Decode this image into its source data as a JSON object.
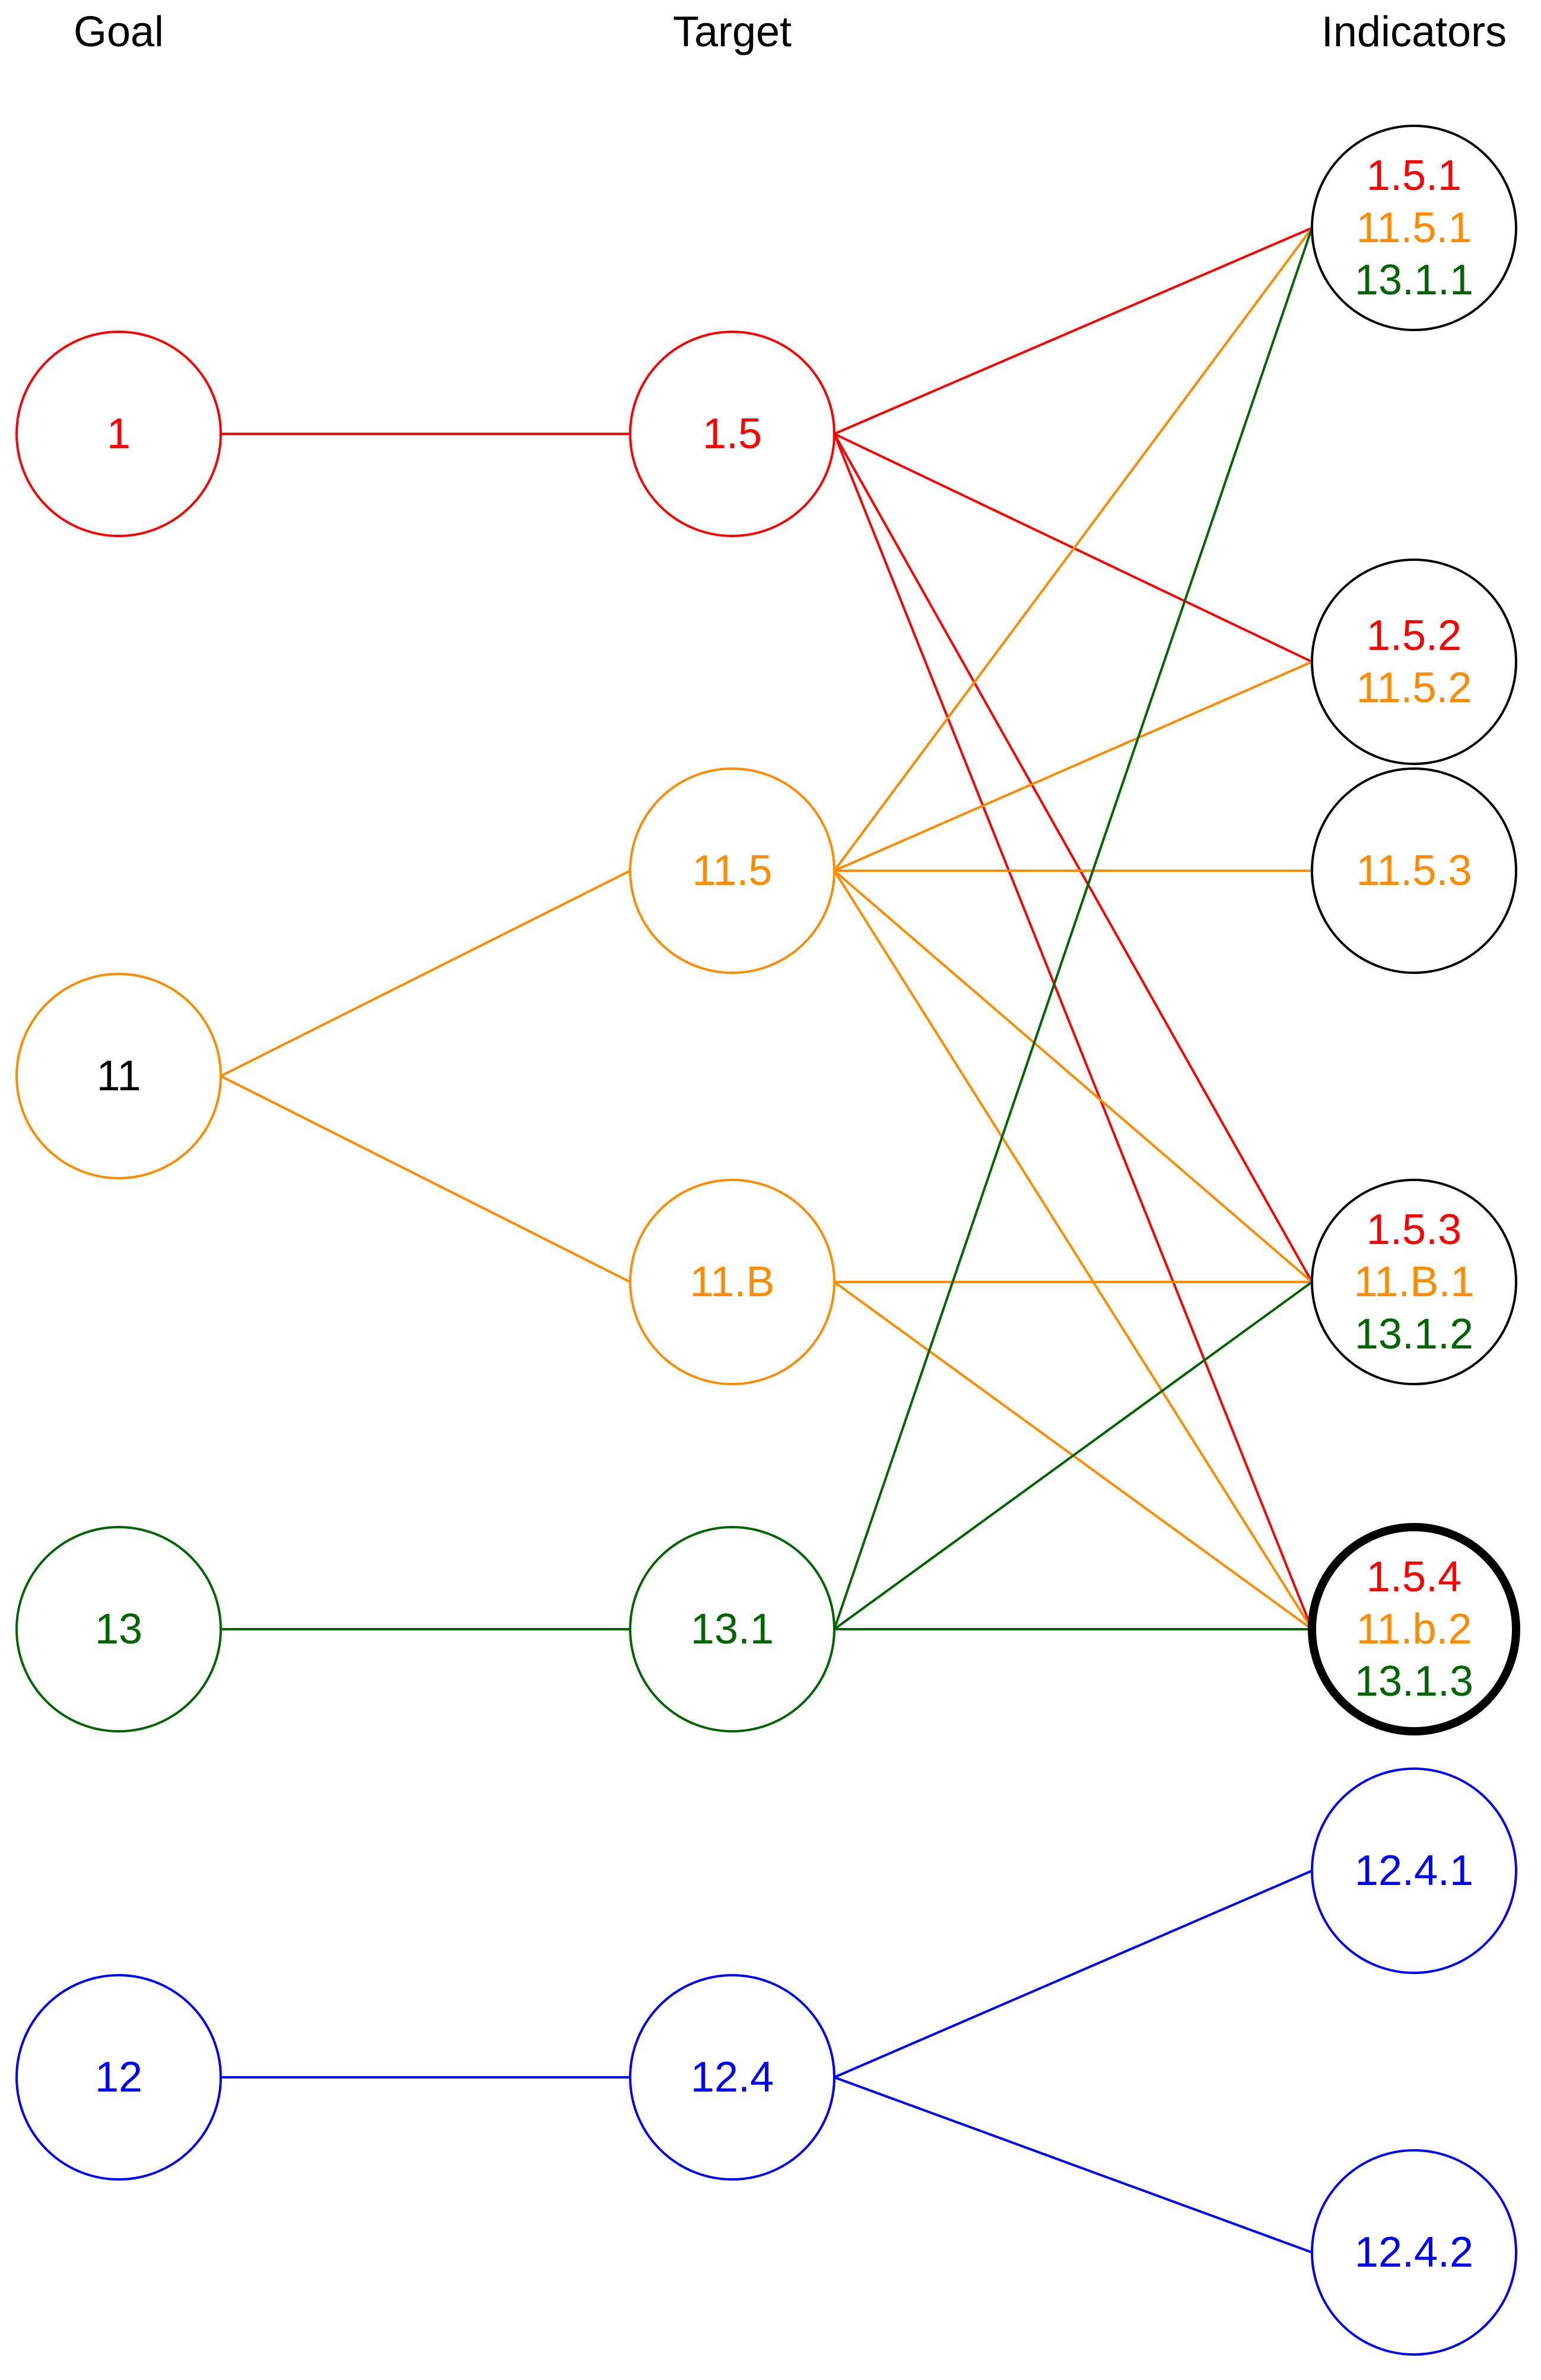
{
  "headers": {
    "goal": "Goal",
    "target": "Target",
    "indicators": "Indicators"
  },
  "colors": {
    "red": "#ff0000",
    "orange": "#ff8c00",
    "green": "#006400",
    "blue": "#0000ff",
    "black": "#000000"
  },
  "goals": [
    {
      "id": "g1",
      "label": "1",
      "color": "red",
      "text_color": "red"
    },
    {
      "id": "g11",
      "label": "11",
      "color": "orange",
      "text_color": "black"
    },
    {
      "id": "g13",
      "label": "13",
      "color": "green",
      "text_color": "green"
    },
    {
      "id": "g12",
      "label": "12",
      "color": "blue",
      "text_color": "blue"
    }
  ],
  "targets": [
    {
      "id": "t1_5",
      "label": "1.5",
      "color": "red"
    },
    {
      "id": "t11_5",
      "label": "11.5",
      "color": "orange"
    },
    {
      "id": "t11_B",
      "label": "11.B",
      "color": "orange"
    },
    {
      "id": "t13_1",
      "label": "13.1",
      "color": "green"
    },
    {
      "id": "t12_4",
      "label": "12.4",
      "color": "blue"
    }
  ],
  "indicators": [
    {
      "id": "i1",
      "border": "black",
      "lines": [
        {
          "text": "1.5.1",
          "color": "red"
        },
        {
          "text": "11.5.1",
          "color": "orange"
        },
        {
          "text": "13.1.1",
          "color": "green"
        }
      ]
    },
    {
      "id": "i2",
      "border": "black",
      "lines": [
        {
          "text": "1.5.2",
          "color": "red"
        },
        {
          "text": "11.5.2",
          "color": "orange"
        }
      ]
    },
    {
      "id": "i3",
      "border": "black",
      "lines": [
        {
          "text": "11.5.3",
          "color": "orange"
        }
      ]
    },
    {
      "id": "i4",
      "border": "black",
      "lines": [
        {
          "text": "1.5.3",
          "color": "red"
        },
        {
          "text": "11.B.1",
          "color": "orange"
        },
        {
          "text": "13.1.2",
          "color": "green"
        }
      ]
    },
    {
      "id": "i5",
      "border": "black",
      "emphasized": true,
      "lines": [
        {
          "text": "1.5.4",
          "color": "red"
        },
        {
          "text": "11.b.2",
          "color": "orange"
        },
        {
          "text": "13.1.3",
          "color": "green"
        }
      ]
    },
    {
      "id": "i6",
      "border": "blue",
      "lines": [
        {
          "text": "12.4.1",
          "color": "blue"
        }
      ]
    },
    {
      "id": "i7",
      "border": "blue",
      "lines": [
        {
          "text": "12.4.2",
          "color": "blue"
        }
      ]
    }
  ],
  "edges": [
    {
      "from": "g1",
      "to": "t1_5",
      "color": "red"
    },
    {
      "from": "g11",
      "to": "t11_5",
      "color": "orange"
    },
    {
      "from": "g11",
      "to": "t11_B",
      "color": "orange"
    },
    {
      "from": "g13",
      "to": "t13_1",
      "color": "green"
    },
    {
      "from": "g12",
      "to": "t12_4",
      "color": "blue"
    },
    {
      "from": "t1_5",
      "to": "i1",
      "color": "red"
    },
    {
      "from": "t1_5",
      "to": "i2",
      "color": "red"
    },
    {
      "from": "t1_5",
      "to": "i4",
      "color": "red"
    },
    {
      "from": "t1_5",
      "to": "i5",
      "color": "red"
    },
    {
      "from": "t11_5",
      "to": "i1",
      "color": "orange"
    },
    {
      "from": "t11_5",
      "to": "i2",
      "color": "orange"
    },
    {
      "from": "t11_5",
      "to": "i3",
      "color": "orange"
    },
    {
      "from": "t11_5",
      "to": "i4",
      "color": "orange"
    },
    {
      "from": "t11_5",
      "to": "i5",
      "color": "orange"
    },
    {
      "from": "t11_B",
      "to": "i4",
      "color": "orange"
    },
    {
      "from": "t11_B",
      "to": "i5",
      "color": "orange"
    },
    {
      "from": "t13_1",
      "to": "i1",
      "color": "green"
    },
    {
      "from": "t13_1",
      "to": "i4",
      "color": "green"
    },
    {
      "from": "t13_1",
      "to": "i5",
      "color": "green"
    },
    {
      "from": "t12_4",
      "to": "i6",
      "color": "blue"
    },
    {
      "from": "t12_4",
      "to": "i7",
      "color": "blue"
    }
  ]
}
